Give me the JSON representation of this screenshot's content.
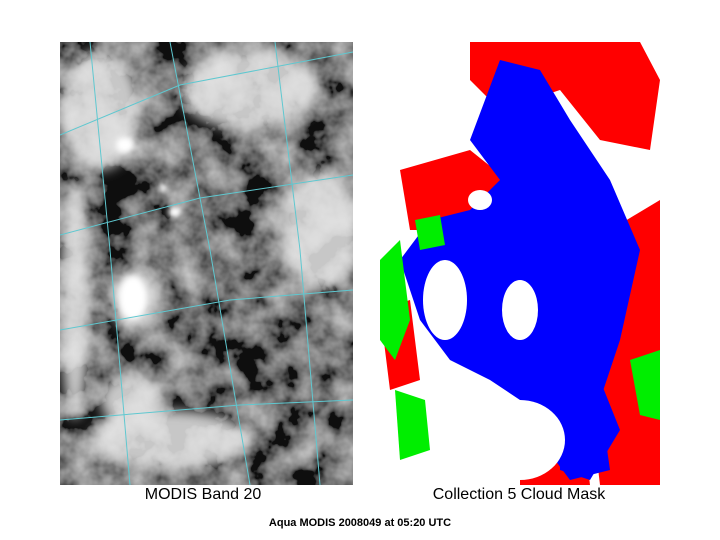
{
  "panels": [
    {
      "caption": "MODIS Band 20"
    },
    {
      "caption": "Collection 5 Cloud Mask"
    }
  ],
  "footer": "Aqua MODIS 2008049 at 05:20 UTC"
}
